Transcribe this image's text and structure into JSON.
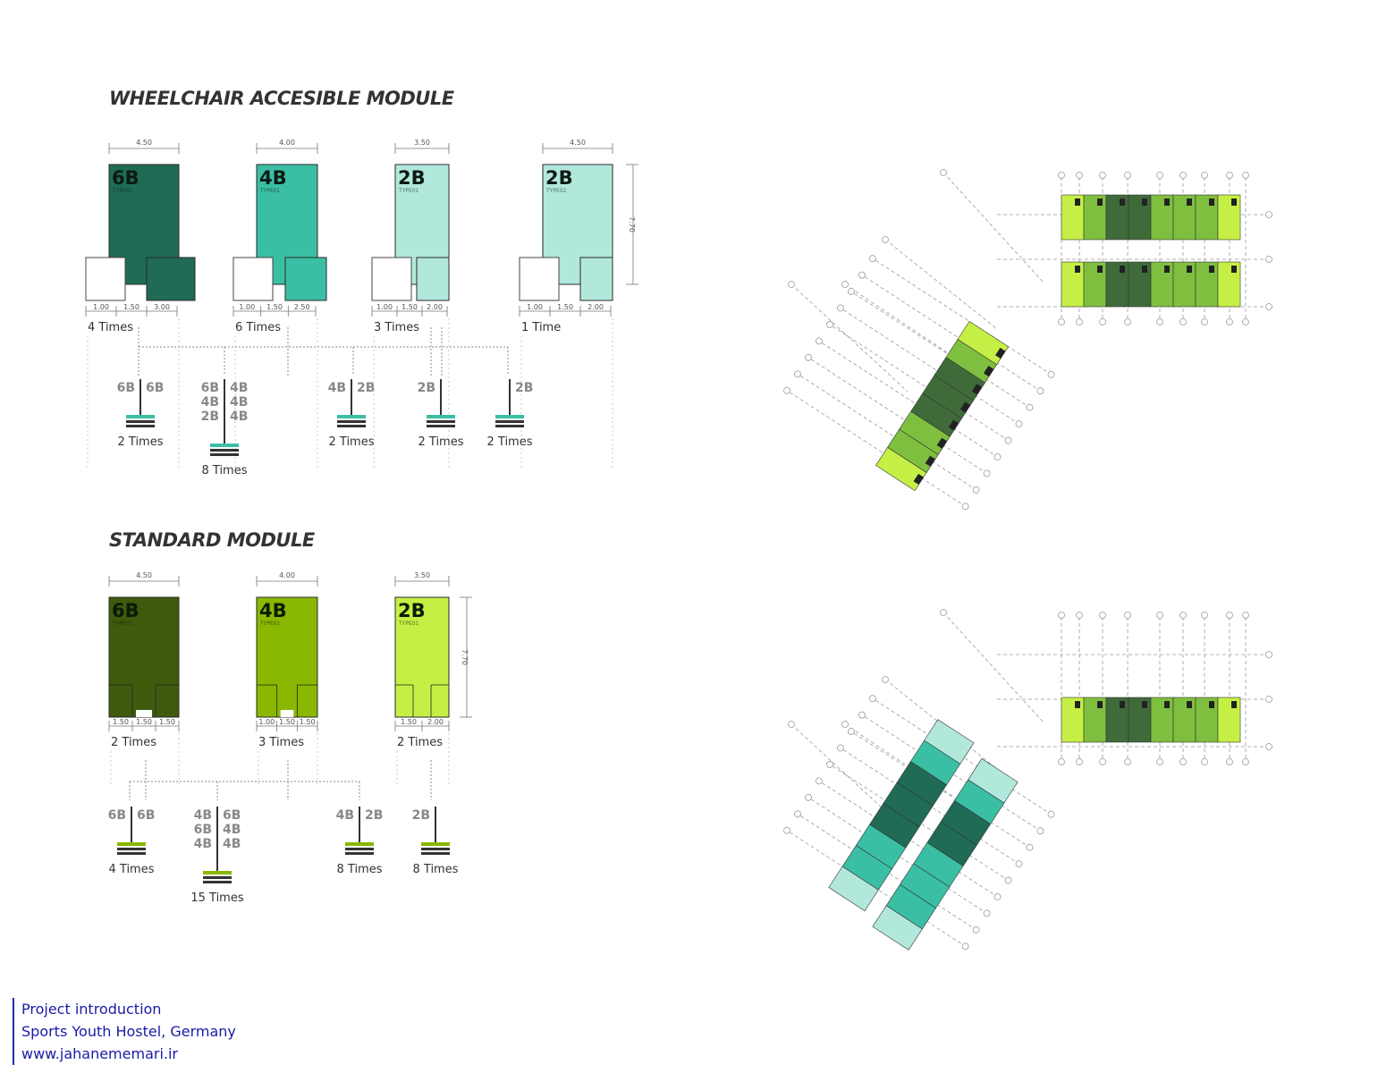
{
  "wheelchair": {
    "title": "WHEELCHAIR ACCESIBLE MODULE",
    "modules": [
      {
        "name": "6B",
        "type": "TYPE01",
        "width": "4.50",
        "dims": [
          "1.00",
          "1.50",
          "3.00"
        ],
        "count": "4  Times"
      },
      {
        "name": "4B",
        "type": "TYPE01",
        "width": "4.00",
        "dims": [
          "1.00",
          "1.50",
          "2.50"
        ],
        "count": "6  Times"
      },
      {
        "name": "2B",
        "type": "TYPE01",
        "width": "3.50",
        "dims": [
          "1.00",
          "1.50",
          "2.00"
        ],
        "count": "3  Times"
      },
      {
        "name": "2B",
        "type": "TYPE02",
        "width": "4.50",
        "dims": [
          "1.00",
          "1.50",
          "2.00"
        ],
        "count": "1  Time"
      }
    ],
    "depth": "7.70",
    "combos": [
      {
        "left": [
          "6B"
        ],
        "right": [
          "6B"
        ],
        "count": "2  Times"
      },
      {
        "left": [
          "6B",
          "4B",
          "2B"
        ],
        "right": [
          "4B",
          "4B",
          "4B"
        ],
        "count": "8  Times"
      },
      {
        "left": [
          "4B"
        ],
        "right": [
          "2B"
        ],
        "count": "2  Times"
      },
      {
        "left": [
          "2B"
        ],
        "right": [],
        "count": "2  Times"
      },
      {
        "left": [],
        "right": [
          "2B"
        ],
        "count": "2  Times"
      }
    ]
  },
  "standard": {
    "title": "STANDARD MODULE",
    "modules": [
      {
        "name": "6B",
        "type": "TYPE01",
        "width": "4.50",
        "dims": [
          "1.50",
          "1.50",
          "1.50"
        ],
        "count": "2  Times"
      },
      {
        "name": "4B",
        "type": "TYPE01",
        "width": "4.00",
        "dims": [
          "1.00",
          "1.50",
          "1.50"
        ],
        "count": "3  Times"
      },
      {
        "name": "2B",
        "type": "TYPE01",
        "width": "3.50",
        "dims": [
          "1.50",
          "2.00"
        ],
        "count": "2  Times"
      }
    ],
    "depth": "7.70",
    "combos": [
      {
        "left": [
          "6B"
        ],
        "right": [
          "6B"
        ],
        "count": "4  Times"
      },
      {
        "left": [
          "4B",
          "6B",
          "4B"
        ],
        "right": [
          "6B",
          "4B",
          "4B"
        ],
        "count": "15  Times"
      },
      {
        "left": [
          "4B"
        ],
        "right": [
          "2B"
        ],
        "count": "8  Times"
      },
      {
        "left": [
          "2B"
        ],
        "right": [],
        "count": "8  Times"
      }
    ]
  },
  "colors": {
    "wc_6b": "#1f6b55",
    "wc_4b": "#3bbfa4",
    "wc_2b": "#b2e8dc",
    "std_6b": "#3f5a0d",
    "std_4b": "#8ab800",
    "std_2b": "#c6ef45",
    "light_lime": "#c6ef45",
    "mid_green": "#7fbf3f",
    "dark_green": "#3f6b3a",
    "footer_text": "#1a1aa8"
  },
  "footer": {
    "line1": "Project introduction",
    "line2": "Sports Youth Hostel, Germany",
    "line3": "www.jahanememari.ir"
  }
}
